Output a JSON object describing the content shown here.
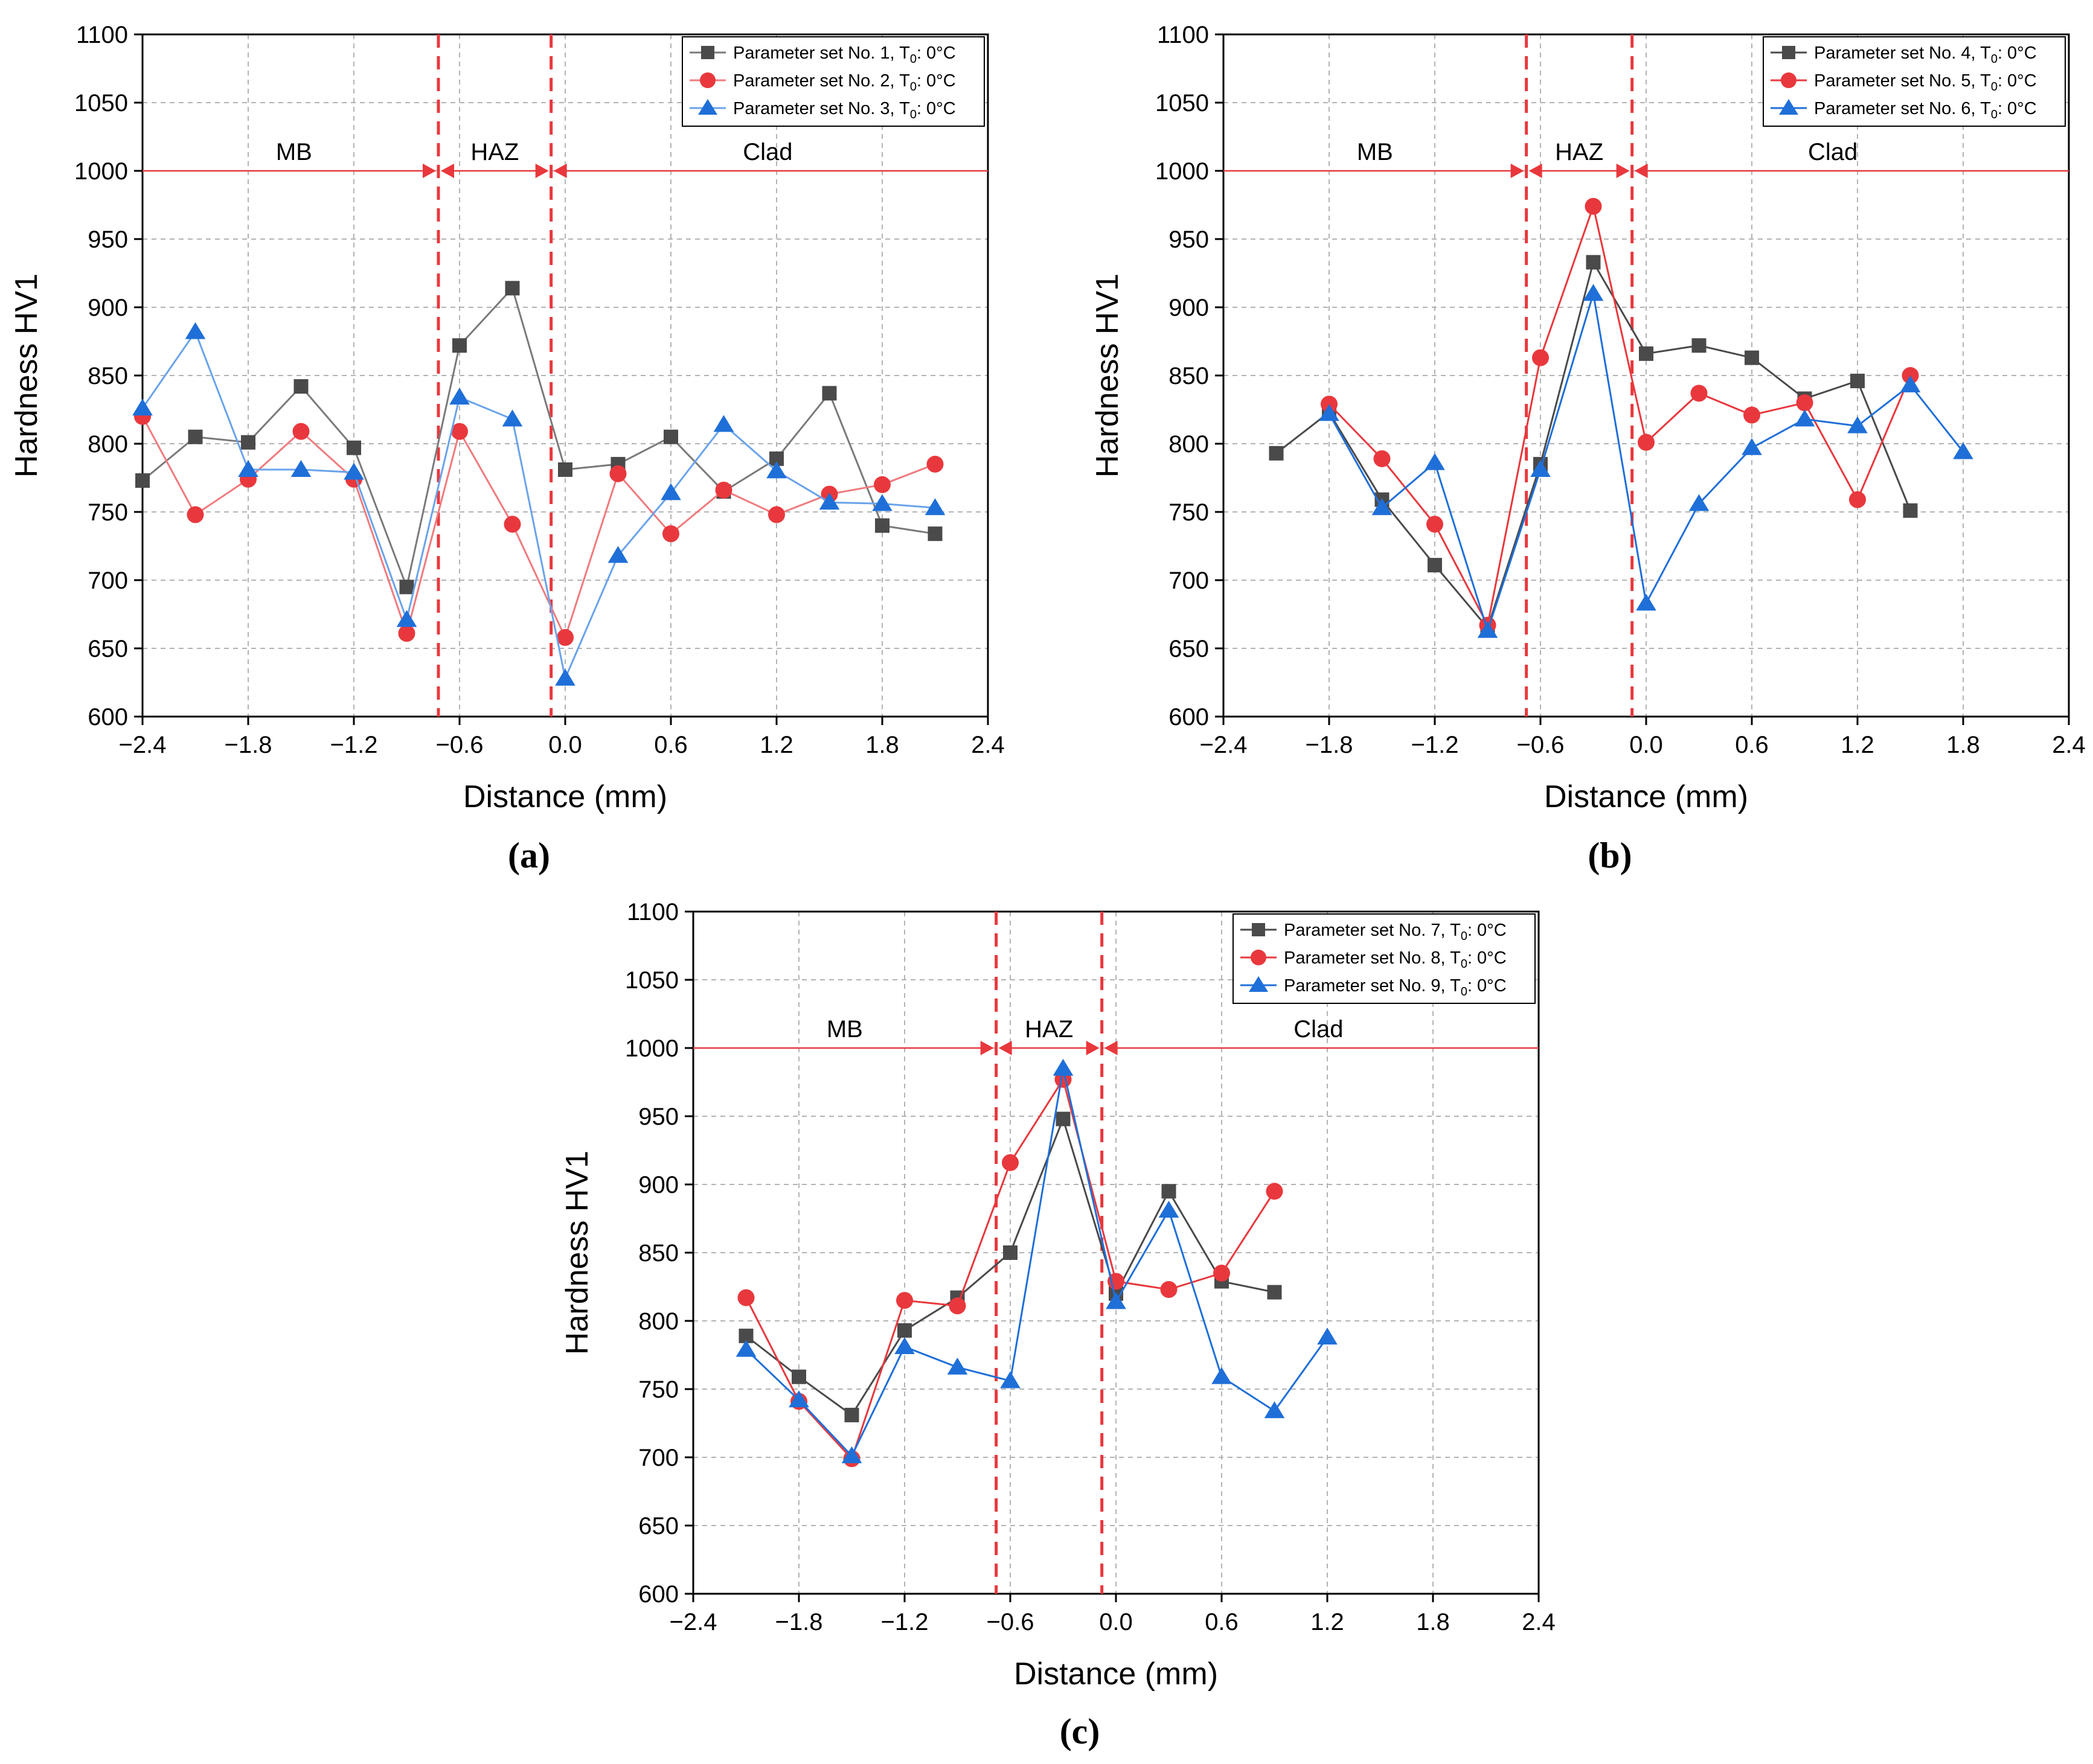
{
  "chart_data": [
    {
      "type": "line",
      "panel_label": "(a)",
      "xlabel": "Distance (mm)",
      "ylabel": "Hardness HV1",
      "xlim": [
        -2.4,
        2.4
      ],
      "ylim": [
        600,
        1100
      ],
      "xticks": [
        -2.4,
        -1.8,
        -1.2,
        -0.6,
        0.0,
        0.6,
        1.2,
        1.8,
        2.4
      ],
      "xtick_labels": [
        "−2.4",
        "−1.8",
        "−1.2",
        "−0.6",
        "0.0",
        "0.6",
        "1.2",
        "1.8",
        "2.4"
      ],
      "yticks": [
        600,
        650,
        700,
        750,
        800,
        850,
        900,
        950,
        1000,
        1050,
        1100
      ],
      "ytick_labels": [
        "600",
        "650",
        "700",
        "750",
        "800",
        "850",
        "900",
        "950",
        "1000",
        "1050",
        "1100"
      ],
      "grid": true,
      "legend_position": "top-right",
      "zones": {
        "boundaries": [
          -0.72,
          -0.08
        ],
        "arrow_level": 1000,
        "labels": [
          {
            "text": "MB",
            "x": -1.54
          },
          {
            "text": "HAZ",
            "x": -0.4
          },
          {
            "text": "Clad",
            "x": 1.15
          }
        ]
      },
      "series": [
        {
          "name": "Parameter set No. 1, T",
          "subscript": "0",
          "suffix": ": 0°C",
          "marker": "square",
          "color": "#4a4a4a",
          "line_color": "#7a7a7a",
          "x": [
            -2.4,
            -2.1,
            -1.8,
            -1.5,
            -1.2,
            -0.9,
            -0.6,
            -0.3,
            0.0,
            0.3,
            0.6,
            0.9,
            1.2,
            1.5,
            1.8,
            2.1
          ],
          "y": [
            773,
            805,
            801,
            842,
            797,
            695,
            872,
            914,
            781,
            785,
            805,
            765,
            789,
            837,
            740,
            734
          ]
        },
        {
          "name": "Parameter set No. 2, T",
          "subscript": "0",
          "suffix": ": 0°C",
          "marker": "circle",
          "color": "#e8383d",
          "line_color": "#f07a7d",
          "x": [
            -2.4,
            -2.1,
            -1.8,
            -1.5,
            -1.2,
            -0.9,
            -0.6,
            -0.3,
            0.0,
            0.3,
            0.6,
            0.9,
            1.2,
            1.5,
            1.8,
            2.1
          ],
          "y": [
            820,
            748,
            774,
            809,
            774,
            661,
            809,
            741,
            658,
            778,
            734,
            766,
            748,
            763,
            770,
            785
          ]
        },
        {
          "name": "Parameter set No. 3, T",
          "subscript": "0",
          "suffix": ": 0°C",
          "marker": "triangle",
          "color": "#1f6fd8",
          "line_color": "#6aa3ea",
          "x": [
            -2.4,
            -2.1,
            -1.8,
            -1.5,
            -1.2,
            -0.9,
            -0.6,
            -0.3,
            0.0,
            0.3,
            0.6,
            0.9,
            1.2,
            1.5,
            1.8,
            2.1
          ],
          "y": [
            826,
            882,
            781,
            781,
            779,
            671,
            834,
            818,
            628,
            718,
            764,
            814,
            780,
            757,
            756,
            753
          ]
        }
      ]
    },
    {
      "type": "line",
      "panel_label": "(b)",
      "xlabel": "Distance (mm)",
      "ylabel": "Hardness HV1",
      "xlim": [
        -2.4,
        2.4
      ],
      "ylim": [
        600,
        1100
      ],
      "xticks": [
        -2.4,
        -1.8,
        -1.2,
        -0.6,
        0.0,
        0.6,
        1.2,
        1.8,
        2.4
      ],
      "xtick_labels": [
        "−2.4",
        "−1.8",
        "−1.2",
        "−0.6",
        "0.0",
        "0.6",
        "1.2",
        "1.8",
        "2.4"
      ],
      "yticks": [
        600,
        650,
        700,
        750,
        800,
        850,
        900,
        950,
        1000,
        1050,
        1100
      ],
      "ytick_labels": [
        "600",
        "650",
        "700",
        "750",
        "800",
        "850",
        "900",
        "950",
        "1000",
        "1050",
        "1100"
      ],
      "grid": true,
      "legend_position": "top-right",
      "zones": {
        "boundaries": [
          -0.68,
          -0.08
        ],
        "arrow_level": 1000,
        "labels": [
          {
            "text": "MB",
            "x": -1.54
          },
          {
            "text": "HAZ",
            "x": -0.38
          },
          {
            "text": "Clad",
            "x": 1.06
          }
        ]
      },
      "series": [
        {
          "name": "Parameter set No. 4, T",
          "subscript": "0",
          "suffix": ": 0°C",
          "marker": "square",
          "color": "#4a4a4a",
          "line_color": "#4a4a4a",
          "x": [
            -2.1,
            -1.8,
            -1.5,
            -1.2,
            -0.9,
            -0.6,
            -0.3,
            0.0,
            0.3,
            0.6,
            0.9,
            1.2,
            1.5
          ],
          "y": [
            793,
            823,
            759,
            711,
            665,
            785,
            933,
            866,
            872,
            863,
            833,
            846,
            751
          ]
        },
        {
          "name": "Parameter set No. 5, T",
          "subscript": "0",
          "suffix": ": 0°C",
          "marker": "circle",
          "color": "#e8383d",
          "line_color": "#e8383d",
          "x": [
            -1.8,
            -1.5,
            -1.2,
            -0.9,
            -0.6,
            -0.3,
            0.0,
            0.3,
            0.6,
            0.9,
            1.2,
            1.5
          ],
          "y": [
            829,
            789,
            741,
            667,
            863,
            974,
            801,
            837,
            821,
            830,
            759,
            850
          ]
        },
        {
          "name": "Parameter set No. 6, T",
          "subscript": "0",
          "suffix": ": 0°C",
          "marker": "triangle",
          "color": "#1f6fd8",
          "line_color": "#1f6fd8",
          "x": [
            -1.8,
            -1.5,
            -1.2,
            -0.9,
            -0.6,
            -0.3,
            0.0,
            0.3,
            0.6,
            0.9,
            1.2,
            1.5,
            1.8
          ],
          "y": [
            822,
            753,
            786,
            663,
            781,
            910,
            683,
            756,
            797,
            818,
            813,
            843,
            794
          ]
        }
      ]
    },
    {
      "type": "line",
      "panel_label": "(c)",
      "xlabel": "Distance (mm)",
      "ylabel": "Hardness HV1",
      "xlim": [
        -2.4,
        2.4
      ],
      "ylim": [
        600,
        1100
      ],
      "xticks": [
        -2.4,
        -1.8,
        -1.2,
        -0.6,
        0.0,
        0.6,
        1.2,
        1.8,
        2.4
      ],
      "xtick_labels": [
        "−2.4",
        "−1.8",
        "−1.2",
        "−0.6",
        "0.0",
        "0.6",
        "1.2",
        "1.8",
        "2.4"
      ],
      "yticks": [
        600,
        650,
        700,
        750,
        800,
        850,
        900,
        950,
        1000,
        1050,
        1100
      ],
      "ytick_labels": [
        "600",
        "650",
        "700",
        "750",
        "800",
        "850",
        "900",
        "950",
        "1000",
        "1050",
        "1100"
      ],
      "grid": true,
      "legend_position": "top-right",
      "zones": {
        "boundaries": [
          -0.68,
          -0.08
        ],
        "arrow_level": 1000,
        "labels": [
          {
            "text": "MB",
            "x": -1.54
          },
          {
            "text": "HAZ",
            "x": -0.38
          },
          {
            "text": "Clad",
            "x": 1.15
          }
        ]
      },
      "series": [
        {
          "name": "Parameter set No. 7, T",
          "subscript": "0",
          "suffix": ": 0°C",
          "marker": "square",
          "color": "#4a4a4a",
          "line_color": "#4a4a4a",
          "x": [
            -2.1,
            -1.8,
            -1.5,
            -1.2,
            -0.9,
            -0.6,
            -0.3,
            0.0,
            0.3,
            0.6,
            0.9
          ],
          "y": [
            789,
            759,
            731,
            793,
            817,
            850,
            948,
            820,
            895,
            829,
            821
          ]
        },
        {
          "name": "Parameter set No. 8, T",
          "subscript": "0",
          "suffix": ": 0°C",
          "marker": "circle",
          "color": "#e8383d",
          "line_color": "#e8383d",
          "x": [
            -2.1,
            -1.8,
            -1.5,
            -1.2,
            -0.9,
            -0.6,
            -0.3,
            0.0,
            0.3,
            0.6,
            0.9
          ],
          "y": [
            817,
            741,
            699,
            815,
            811,
            916,
            977,
            829,
            823,
            835,
            895
          ]
        },
        {
          "name": "Parameter set No. 9, T",
          "subscript": "0",
          "suffix": ": 0°C",
          "marker": "triangle",
          "color": "#1f6fd8",
          "line_color": "#1f6fd8",
          "x": [
            -2.1,
            -1.8,
            -1.5,
            -1.2,
            -0.9,
            -0.6,
            -0.3,
            0.0,
            0.3,
            0.6,
            0.9,
            1.2
          ],
          "y": [
            779,
            742,
            701,
            781,
            766,
            756,
            985,
            814,
            881,
            759,
            734,
            788
          ]
        }
      ]
    }
  ]
}
